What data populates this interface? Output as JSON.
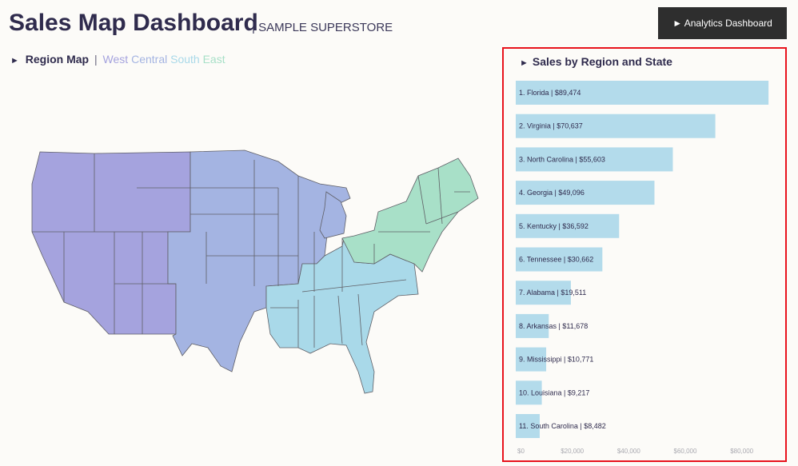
{
  "header": {
    "title": "Sales Map Dashboard",
    "subtitle": "| SAMPLE SUPERSTORE",
    "analytics_button": "► Analytics Dashboard"
  },
  "region_map": {
    "arrow": "►",
    "title": "Region Map",
    "separator": "|",
    "legend": [
      {
        "label": "West",
        "color": "#a5a3de"
      },
      {
        "label": "Central",
        "color": "#a4b4e2"
      },
      {
        "label": "South",
        "color": "#a9d9e9"
      },
      {
        "label": "East",
        "color": "#a8e0c8"
      }
    ]
  },
  "sales_chart": {
    "arrow": "►",
    "title": "Sales by Region and State",
    "bar_color": "#b3dbeb"
  },
  "chart_data": {
    "type": "bar",
    "orientation": "horizontal",
    "title": "Sales by Region and State",
    "categories": [
      "Florida",
      "Virginia",
      "North Carolina",
      "Georgia",
      "Kentucky",
      "Tennessee",
      "Alabama",
      "Arkansas",
      "Mississippi",
      "Louisiana",
      "South Carolina"
    ],
    "values": [
      89474,
      70637,
      55603,
      49096,
      36592,
      30662,
      19511,
      11678,
      10771,
      9217,
      8482
    ],
    "labels": [
      "1. Florida | $89,474",
      "2. Virginia | $70,637",
      "3. North Carolina | $55,603",
      "4. Georgia | $49,096",
      "5. Kentucky | $36,592",
      "6. Tennessee | $30,662",
      "7. Alabama | $19,511",
      "8. Arkansas | $11,678",
      "9. Mississippi | $10,771",
      "10. Louisiana | $9,217",
      "11. South Carolina | $8,482"
    ],
    "xlim": [
      0,
      90000
    ],
    "xticks": [
      "$0",
      "$20,000",
      "$40,000",
      "$60,000",
      "$80,000"
    ],
    "xtick_values": [
      0,
      20000,
      40000,
      60000,
      80000
    ]
  }
}
